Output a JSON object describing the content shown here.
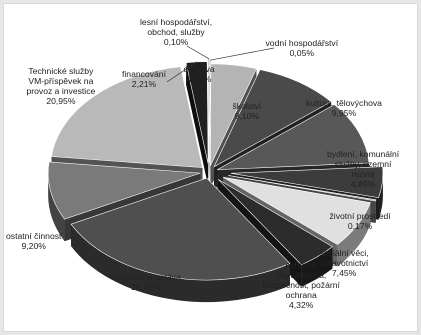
{
  "chart_data": {
    "type": "pie",
    "style": "exploded 3D pie, grayscale",
    "legend": "none",
    "slices": [
      {
        "name": "vodní hospodářství",
        "label_lines": [
          "vodní hospodářství"
        ],
        "value_label": "0,05%",
        "value": 0.05,
        "color": "#c8c8c8"
      },
      {
        "name": "doprava",
        "label_lines": [
          "doprava"
        ],
        "value_label": "4,85%",
        "value": 4.85,
        "color": "#b4b4b4"
      },
      {
        "name": "školství",
        "label_lines": [
          "školství"
        ],
        "value_label": "9,10%",
        "value": 9.1,
        "color": "#4a4a4a"
      },
      {
        "name": "kultura, tělovýchova",
        "label_lines": [
          "kultura, tělovýchova"
        ],
        "value_label": "9,95%",
        "value": 9.95,
        "color": "#585858"
      },
      {
        "name": "bydlení, komunální služby, územní rozvoj",
        "label_lines": [
          "bydlení, komunální",
          "služby, územní",
          "rozvoj"
        ],
        "value_label": "4,89%",
        "value": 4.89,
        "color": "#3c3c3c"
      },
      {
        "name": "životní prostředí",
        "label_lines": [
          "životní prostředí"
        ],
        "value_label": "0,17%",
        "value": 0.17,
        "color": "#9a9a9a"
      },
      {
        "name": "sociální věci, zdravotnictví",
        "label_lines": [
          "sociální věci,",
          "zdravotnictví"
        ],
        "value_label": "7,45%",
        "value": 7.45,
        "color": "#e0e0e0"
      },
      {
        "name": "ochrana obyvatelstva, bezpečnost, požární ochrana",
        "label_lines": [
          "ochrana",
          "obyvatelstva,",
          "bezpečnost, požární",
          "ochrana"
        ],
        "value_label": "4,32%",
        "value": 4.32,
        "color": "#2c2c2c"
      },
      {
        "name": "všeobecná správa",
        "label_lines": [
          "všeobecná správa"
        ],
        "value_label": "26,76%",
        "value": 26.76,
        "color": "#4f4f4f"
      },
      {
        "name": "ostatní činnost",
        "label_lines": [
          "ostatní činnost"
        ],
        "value_label": "9,20%",
        "value": 9.2,
        "color": "#7a7a7a"
      },
      {
        "name": "Technické služby VM-příspěvek na provoz a investice",
        "label_lines": [
          "Technické služby",
          "VM-příspěvek na",
          "provoz a investice"
        ],
        "value_label": "20,95%",
        "value": 20.95,
        "color": "#b9b9b9"
      },
      {
        "name": "financování",
        "label_lines": [
          "financování"
        ],
        "value_label": "2,21%",
        "value": 2.21,
        "color": "#202020"
      },
      {
        "name": "lesní hospodářství, obchod, služby",
        "label_lines": [
          "lesní hospodářství,",
          "obchod, služby"
        ],
        "value_label": "0,10%",
        "value": 0.1,
        "color": "#8a8a8a"
      }
    ]
  }
}
